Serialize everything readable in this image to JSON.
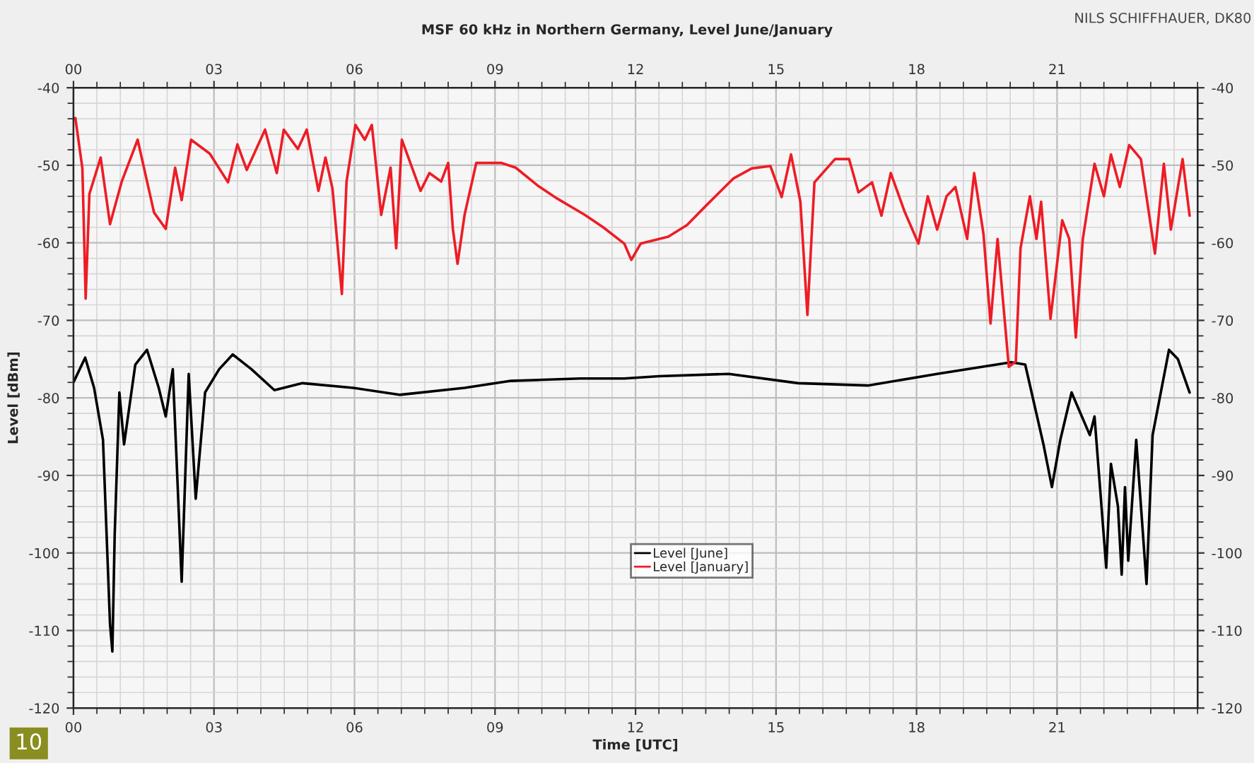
{
  "chart_data": {
    "type": "line",
    "title": "MSF 60 kHz in Northern Germany, Level June/January",
    "xlabel": "Time [UTC]",
    "ylabel": "Level [dBm]",
    "annotations": [
      "NILS SCHIFFHAUER, DK80",
      "10"
    ],
    "xlim": [
      0,
      24
    ],
    "x2lim": [
      0,
      24
    ],
    "xticks": [
      {
        "value": 0,
        "label": "00"
      },
      {
        "value": 3,
        "label": "03"
      },
      {
        "value": 6,
        "label": "06"
      },
      {
        "value": 9,
        "label": "09"
      },
      {
        "value": 12,
        "label": "12"
      },
      {
        "value": 15,
        "label": "15"
      },
      {
        "value": 18,
        "label": "18"
      },
      {
        "value": 21,
        "label": "21"
      }
    ],
    "x2ticks": [
      {
        "value": 0,
        "label": "00"
      },
      {
        "value": 3,
        "label": "03"
      },
      {
        "value": 6,
        "label": "06"
      },
      {
        "value": 9,
        "label": "09"
      },
      {
        "value": 12,
        "label": "12"
      },
      {
        "value": 15,
        "label": "15"
      },
      {
        "value": 18,
        "label": "18"
      },
      {
        "value": 21,
        "label": "21"
      }
    ],
    "ylim": [
      -120,
      -40
    ],
    "yticks": [
      -120,
      -110,
      -100,
      -90,
      -80,
      -70,
      -60,
      -50,
      -40
    ],
    "y2lim": [
      -120,
      -40
    ],
    "y2ticks": [
      -120,
      -110,
      -100,
      -90,
      -80,
      -70,
      -60,
      -50,
      -40
    ],
    "grid": true,
    "legend": "bottom",
    "series": [
      {
        "name": "Level [June]",
        "color": "#000000",
        "x": [
          0,
          0.25,
          0.44,
          0.63,
          0.78,
          0.83,
          0.88,
          0.98,
          1.08,
          1.32,
          1.57,
          1.82,
          1.97,
          2.12,
          2.31,
          2.46,
          2.61,
          2.81,
          3.11,
          3.4,
          3.8,
          4.29,
          4.89,
          5.97,
          6.96,
          8.35,
          9.34,
          10.82,
          11.76,
          12.5,
          13.99,
          15.47,
          16.96,
          18.44,
          20.02,
          20.32,
          20.71,
          20.89,
          21.07,
          21.31,
          21.7,
          21.8,
          22.05,
          22.15,
          22.3,
          22.38,
          22.45,
          22.52,
          22.69,
          22.91,
          23.04,
          23.39,
          23.58,
          23.83
        ],
        "values": [
          -78,
          -74.8,
          -78.7,
          -85.4,
          -109.2,
          -112.7,
          -97.6,
          -79.3,
          -86,
          -75.7,
          -73.8,
          -78.7,
          -82.4,
          -76.3,
          -103.7,
          -76.9,
          -93,
          -79.3,
          -76.3,
          -74.4,
          -76.3,
          -79,
          -78.1,
          -78.7,
          -79.6,
          -78.7,
          -77.8,
          -77.5,
          -77.5,
          -77.2,
          -76.9,
          -78.1,
          -78.4,
          -76.9,
          -75.4,
          -75.7,
          -86,
          -91.5,
          -85.4,
          -79.3,
          -84.8,
          -82.4,
          -101.9,
          -88.5,
          -94,
          -102.8,
          -91.5,
          -101,
          -85.4,
          -104,
          -84.8,
          -73.8,
          -75,
          -79.3
        ]
      },
      {
        "name": "Level [January]",
        "color": "#ee1c25",
        "x": [
          0.04,
          0.19,
          0.26,
          0.34,
          0.58,
          0.78,
          1.03,
          1.37,
          1.72,
          1.97,
          2.17,
          2.31,
          2.51,
          2.91,
          3.3,
          3.5,
          3.7,
          4.09,
          4.34,
          4.49,
          4.79,
          4.98,
          5.23,
          5.38,
          5.53,
          5.73,
          5.83,
          6.02,
          6.22,
          6.37,
          6.57,
          6.77,
          6.89,
          7.01,
          7.41,
          7.6,
          7.85,
          8.0,
          8.1,
          8.2,
          8.35,
          8.6,
          9.14,
          9.44,
          9.93,
          10.33,
          10.92,
          11.31,
          11.76,
          11.91,
          12.11,
          12.7,
          13.1,
          13.49,
          14.09,
          14.48,
          14.88,
          15.12,
          15.32,
          15.52,
          15.67,
          15.82,
          16.26,
          16.56,
          16.76,
          17.05,
          17.25,
          17.45,
          17.74,
          18.04,
          18.24,
          18.44,
          18.64,
          18.83,
          19.08,
          19.23,
          19.43,
          19.58,
          19.73,
          19.97,
          20.12,
          20.22,
          20.42,
          20.56,
          20.66,
          20.86,
          21.11,
          21.26,
          21.4,
          21.55,
          21.8,
          22.0,
          22.15,
          22.34,
          22.54,
          22.79,
          23.09,
          23.28,
          23.43,
          23.68,
          23.83
        ],
        "values": [
          -43.9,
          -50.4,
          -67.2,
          -53.7,
          -49,
          -57.6,
          -52.1,
          -46.7,
          -56.1,
          -58.2,
          -50.3,
          -54.5,
          -46.7,
          -48.5,
          -52.2,
          -47.3,
          -50.6,
          -45.4,
          -51,
          -45.4,
          -47.9,
          -45.4,
          -53.3,
          -49,
          -53,
          -66.6,
          -52.1,
          -44.8,
          -46.7,
          -44.8,
          -56.4,
          -50.3,
          -60.7,
          -46.7,
          -53.3,
          -51,
          -52.1,
          -49.7,
          -58.2,
          -62.7,
          -56.4,
          -49.7,
          -49.7,
          -50.3,
          -52.7,
          -54.3,
          -56.4,
          -58,
          -60.1,
          -62.2,
          -60.1,
          -59.2,
          -57.7,
          -55.3,
          -51.7,
          -50.4,
          -50.1,
          -54.1,
          -48.6,
          -54.7,
          -69.3,
          -52.2,
          -49.2,
          -49.2,
          -53.5,
          -52.2,
          -56.5,
          -51,
          -55.9,
          -60.1,
          -54,
          -58.3,
          -54,
          -52.8,
          -59.5,
          -51,
          -58.9,
          -70.4,
          -59.5,
          -76,
          -75.3,
          -60.7,
          -54,
          -59.5,
          -54.7,
          -69.8,
          -57.1,
          -59.5,
          -72.2,
          -59.5,
          -49.8,
          -54,
          -48.6,
          -52.8,
          -47.4,
          -49.2,
          -61.4,
          -49.8,
          -58.3,
          -49.2,
          -56.5
        ]
      }
    ]
  }
}
